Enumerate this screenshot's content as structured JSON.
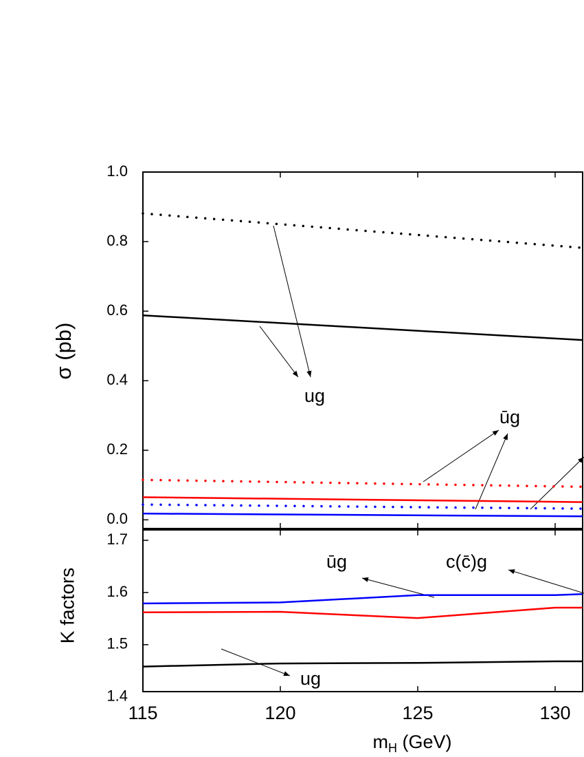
{
  "chart_data": [
    {
      "type": "line",
      "y_label": "σ (pb)",
      "x": [
        115,
        131
      ],
      "xlim": [
        115,
        131
      ],
      "xticks": [
        115,
        120,
        125,
        130
      ],
      "ylim": [
        -0.025,
        1.0
      ],
      "yticks": [
        {
          "value": 0,
          "label": "0.0"
        },
        0.2,
        0.4,
        0.6,
        0.8,
        {
          "value": 1,
          "label": "1.0"
        }
      ],
      "series": [
        {
          "color": "#000000",
          "style": "dotted",
          "values": [
            0.881,
            0.782
          ]
        },
        {
          "color": "#000000",
          "style": "solid",
          "values": [
            0.588,
            0.517
          ]
        },
        {
          "color": "#ff0000",
          "style": "dotted",
          "values": [
            0.115,
            0.095
          ]
        },
        {
          "color": "#ff0000",
          "style": "solid",
          "values": [
            0.065,
            0.051
          ]
        },
        {
          "color": "#0000ff",
          "style": "dotted",
          "values": [
            0.044,
            0.032
          ]
        },
        {
          "color": "#0000ff",
          "style": "solid",
          "values": [
            0.018,
            0.01
          ]
        }
      ],
      "annotations": [
        {
          "text": "ug"
        },
        {
          "text": "ūg"
        }
      ]
    },
    {
      "type": "line",
      "y_label": "K factors",
      "x_label": {
        "main": "m",
        "sub": "H",
        "rest": " (GeV)"
      },
      "x": [
        115,
        120,
        125,
        130,
        131
      ],
      "xlim": [
        115,
        131
      ],
      "xticks": [
        115,
        120,
        125,
        130
      ],
      "ylim": [
        1.41,
        1.72
      ],
      "yticks": [
        1.4,
        1.5,
        1.6,
        1.7
      ],
      "series": [
        {
          "color": "#0000ff",
          "style": "solid",
          "values": [
            1.579,
            1.581,
            1.595,
            1.595,
            1.597
          ]
        },
        {
          "color": "#ff0000",
          "style": "solid",
          "values": [
            1.562,
            1.563,
            1.551,
            1.571,
            1.571
          ]
        },
        {
          "color": "#000000",
          "style": "solid",
          "values": [
            1.458,
            1.464,
            1.465,
            1.468,
            1.468
          ]
        }
      ],
      "annotations": [
        {
          "text": "ūg"
        },
        {
          "text": "c(c̄)g"
        },
        {
          "text": "ug"
        }
      ]
    }
  ]
}
